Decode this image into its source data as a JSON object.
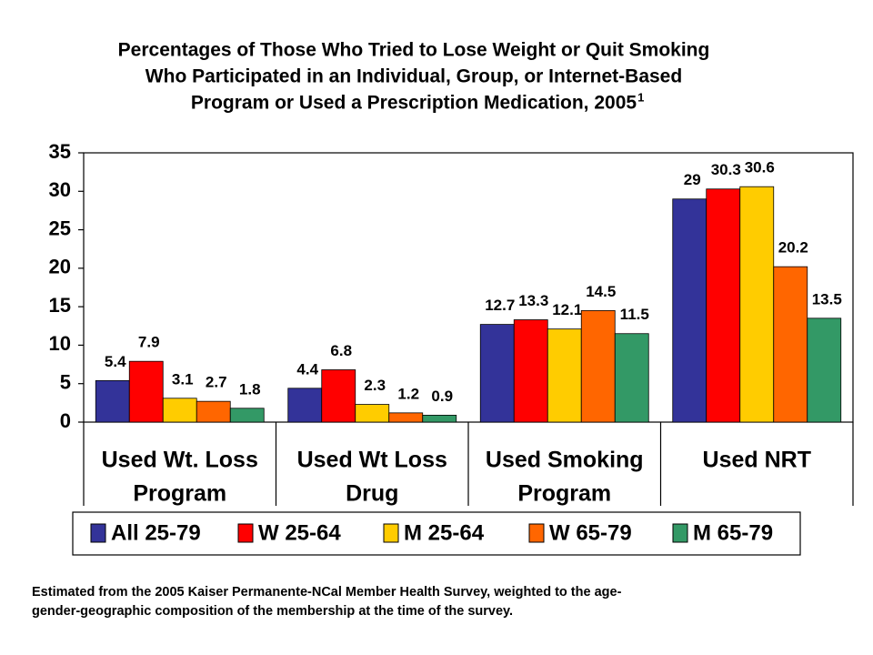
{
  "chart_data": {
    "type": "bar",
    "title": [
      "Percentages of Those Who Tried to Lose Weight or Quit Smoking",
      "Who Participated in an Individual, Group, or Internet-Based",
      "Program or Used a Prescription Medication, 2005"
    ],
    "title_superscript": "1",
    "categories": [
      [
        "Used Wt. Loss",
        "Program"
      ],
      [
        "Used Wt Loss",
        "Drug"
      ],
      [
        "Used Smoking",
        "Program"
      ],
      [
        "Used NRT"
      ]
    ],
    "series": [
      {
        "name": "All 25-79",
        "color": "#333399",
        "values": [
          5.4,
          4.4,
          12.7,
          29
        ]
      },
      {
        "name": "W 25-64",
        "color": "#ff0000",
        "values": [
          7.9,
          6.8,
          13.3,
          30.3
        ]
      },
      {
        "name": "M 25-64",
        "color": "#ffcc00",
        "values": [
          3.1,
          2.3,
          12.1,
          30.6
        ]
      },
      {
        "name": "W 65-79",
        "color": "#ff6600",
        "values": [
          2.7,
          1.2,
          14.5,
          20.2
        ]
      },
      {
        "name": "M 65-79",
        "color": "#339966",
        "values": [
          1.8,
          0.9,
          11.5,
          13.5
        ]
      }
    ],
    "ylim": [
      0,
      35
    ],
    "yticks": [
      0,
      5,
      10,
      15,
      20,
      25,
      30,
      35
    ],
    "grid": false,
    "legend": "bottom",
    "footnote": [
      "Estimated from the 2005 Kaiser Permanente-NCal Member Health Survey, weighted to the age-",
      "gender-geographic composition of the membership at the time of the survey."
    ]
  }
}
